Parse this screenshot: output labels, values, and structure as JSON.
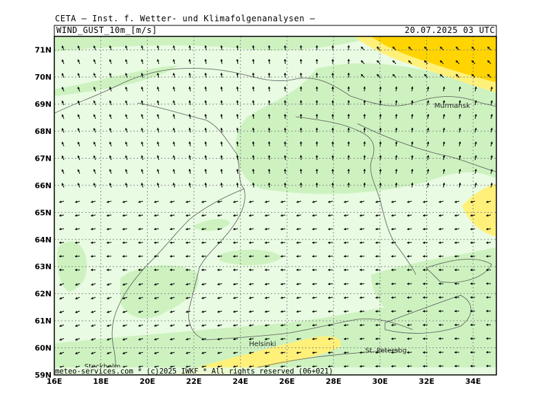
{
  "header": {
    "title": "CETA — Inst. f. Wetter- und Klimafolgenanalysen —",
    "field": "WIND_GUST_10m_[m/s]",
    "valid_time": "20.07.2025 03 UTC"
  },
  "axes": {
    "lat_labels": [
      "71N",
      "70N",
      "69N",
      "68N",
      "67N",
      "66N",
      "65N",
      "64N",
      "63N",
      "62N",
      "61N",
      "60N",
      "59N"
    ],
    "lon_labels": [
      "16E",
      "18E",
      "20E",
      "22E",
      "24E",
      "26E",
      "28E",
      "30E",
      "32E",
      "34E"
    ]
  },
  "cities": [
    {
      "name": "Murmansk",
      "lon": 33.1,
      "lat": 68.97
    },
    {
      "name": "Helsinki",
      "lon": 24.95,
      "lat": 60.17
    },
    {
      "name": "St. Petersbg.",
      "lon": 30.3,
      "lat": 59.93
    },
    {
      "name": "Stockholm",
      "lon": 18.07,
      "lat": 59.33
    }
  ],
  "credit": "meteo-services.com * (c)2025 IWKF * All rights reserved (06+021)",
  "colors": {
    "land_bg": "#e9fbe3",
    "gust_band_1": "#cdf2c0",
    "gust_band_2": "#fff07a",
    "gust_band_3": "#ffd400",
    "grid": "#888888",
    "coast": "#555555"
  }
}
